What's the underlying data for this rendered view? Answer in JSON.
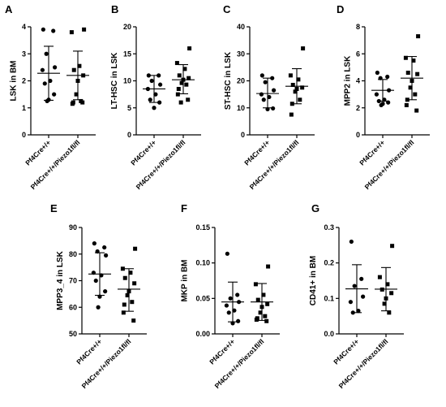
{
  "chart_data": [
    {
      "type": "scatter",
      "panel": "A",
      "ylabel": "LSK in BM",
      "ylim": [
        0,
        4
      ],
      "yticks": [
        0,
        1,
        2,
        3,
        4
      ],
      "tick_labels": [
        "0",
        "1",
        "2",
        "3",
        "4"
      ],
      "categories": [
        "Pf4Cre+/+",
        "Pf4Cre+/+/Piezo1fl/fl"
      ],
      "series": [
        {
          "name": "Pf4Cre+/+",
          "marker": "circle",
          "mean": 2.28,
          "sd_low": 1.28,
          "sd_high": 3.28,
          "values": [
            3.9,
            3.85,
            3.0,
            2.5,
            2.4,
            2.0,
            1.9,
            1.5,
            1.3,
            1.25
          ]
        },
        {
          "name": "Pf4Cre+/+/Piezo1fl/fl",
          "marker": "square",
          "mean": 2.2,
          "sd_low": 1.3,
          "sd_high": 3.1,
          "values": [
            3.9,
            3.8,
            2.55,
            2.4,
            2.2,
            2.0,
            1.5,
            1.25,
            1.2,
            1.15,
            1.2
          ]
        }
      ]
    },
    {
      "type": "scatter",
      "panel": "B",
      "ylabel": "LT-HSC in LSK",
      "ylim": [
        0,
        20
      ],
      "yticks": [
        0,
        5,
        10,
        15,
        20
      ],
      "tick_labels": [
        "0",
        "5",
        "10",
        "15",
        "20"
      ],
      "categories": [
        "Pf4Cre+/+",
        "Pf4Cre+/+/Piezo1fl/fl"
      ],
      "series": [
        {
          "name": "Pf4Cre+/+",
          "marker": "circle",
          "mean": 8.5,
          "sd_low": 6.0,
          "sd_high": 11.0,
          "values": [
            11.0,
            11.0,
            10.0,
            9.3,
            8.5,
            7.5,
            6.5,
            6.0,
            5.0
          ]
        },
        {
          "name": "Pf4Cre+/+/Piezo1fl/fl",
          "marker": "square",
          "mean": 10.2,
          "sd_low": 7.6,
          "sd_high": 13.0,
          "values": [
            16.0,
            13.3,
            12.2,
            11.0,
            10.5,
            10.2,
            9.6,
            9.3,
            8.5,
            7.5,
            6.5,
            6.0
          ]
        }
      ]
    },
    {
      "type": "scatter",
      "panel": "C",
      "ylabel": "ST-HSC in LSK",
      "ylim": [
        0,
        40
      ],
      "yticks": [
        0,
        10,
        20,
        30,
        40
      ],
      "tick_labels": [
        "0",
        "10",
        "20",
        "30",
        "40"
      ],
      "categories": [
        "Pf4Cre+/+",
        "Pf4Cre+/+/Piezo1fl/fl"
      ],
      "series": [
        {
          "name": "Pf4Cre+/+",
          "marker": "circle",
          "mean": 15.3,
          "sd_low": 10.0,
          "sd_high": 21.0,
          "values": [
            22.0,
            21.0,
            19.5,
            16.5,
            15.0,
            14.0,
            13.0,
            9.8,
            9.5
          ]
        },
        {
          "name": "Pf4Cre+/+/Piezo1fl/fl",
          "marker": "square",
          "mean": 18.0,
          "sd_low": 11.5,
          "sd_high": 24.5,
          "values": [
            32.0,
            22.0,
            20.5,
            18.5,
            17.5,
            17.0,
            16.0,
            13.0,
            11.5,
            7.5
          ]
        }
      ]
    },
    {
      "type": "scatter",
      "panel": "D",
      "ylabel": "MPP2 in LSK",
      "ylim": [
        0,
        8
      ],
      "yticks": [
        0,
        2,
        4,
        6,
        8
      ],
      "tick_labels": [
        "0",
        "2",
        "4",
        "6",
        "8"
      ],
      "categories": [
        "Pf4Cre+/+",
        "Pf4Cre+/+/Piezo1fl/fl"
      ],
      "series": [
        {
          "name": "Pf4Cre+/+",
          "marker": "circle",
          "mean": 3.3,
          "sd_low": 2.5,
          "sd_high": 4.1,
          "values": [
            4.6,
            4.3,
            4.2,
            3.3,
            3.0,
            2.6,
            2.5,
            2.4,
            2.3,
            2.2
          ]
        },
        {
          "name": "Pf4Cre+/+/Piezo1fl/fl",
          "marker": "square",
          "mean": 4.2,
          "sd_low": 2.6,
          "sd_high": 5.8,
          "values": [
            7.3,
            5.7,
            5.5,
            4.6,
            4.5,
            4.0,
            3.5,
            3.0,
            2.6,
            2.2,
            1.8
          ]
        }
      ]
    },
    {
      "type": "scatter",
      "panel": "E",
      "ylabel": "MPP3_4 in LSK",
      "ylim": [
        50,
        90
      ],
      "yticks": [
        50,
        60,
        70,
        80,
        90
      ],
      "tick_labels": [
        "50",
        "60",
        "70",
        "80",
        "90"
      ],
      "categories": [
        "Pf4Cre+/+",
        "Pf4Cre+/+/Piezo1fl/fl"
      ],
      "series": [
        {
          "name": "Pf4Cre+/+",
          "marker": "circle",
          "mean": 72.5,
          "sd_low": 64.5,
          "sd_high": 80.5,
          "values": [
            84.0,
            82.5,
            81.0,
            79.5,
            73.0,
            72.0,
            70.0,
            66.0,
            64.0,
            60.0
          ]
        },
        {
          "name": "Pf4Cre+/+/Piezo1fl/fl",
          "marker": "square",
          "mean": 66.8,
          "sd_low": 58.5,
          "sd_high": 74.5,
          "values": [
            82.0,
            74.5,
            73.0,
            71.0,
            69.0,
            66.0,
            64.5,
            62.0,
            61.0,
            58.0,
            55.0
          ]
        }
      ]
    },
    {
      "type": "scatter",
      "panel": "F",
      "ylabel": "MKP in BM",
      "ylim": [
        0,
        0.15
      ],
      "yticks": [
        0,
        0.05,
        0.1,
        0.15
      ],
      "tick_labels": [
        "0.00",
        "0.05",
        "0.10",
        "0.15"
      ],
      "categories": [
        "Pf4Cre+/+",
        "Pf4Cre+/+/Piezo1fl/fl"
      ],
      "series": [
        {
          "name": "Pf4Cre+/+",
          "marker": "circle",
          "mean": 0.045,
          "sd_low": 0.017,
          "sd_high": 0.073,
          "values": [
            0.113,
            0.055,
            0.05,
            0.045,
            0.04,
            0.033,
            0.03,
            0.018,
            0.015
          ]
        },
        {
          "name": "Pf4Cre+/+/Piezo1fl/fl",
          "marker": "square",
          "mean": 0.045,
          "sd_low": 0.019,
          "sd_high": 0.071,
          "values": [
            0.095,
            0.07,
            0.055,
            0.048,
            0.042,
            0.038,
            0.03,
            0.025,
            0.022,
            0.02,
            0.018
          ]
        }
      ]
    },
    {
      "type": "scatter",
      "panel": "G",
      "ylabel": "CD41+ in BM",
      "ylim": [
        0,
        0.3
      ],
      "yticks": [
        0,
        0.1,
        0.2,
        0.3
      ],
      "tick_labels": [
        "0.0",
        "0.1",
        "0.2",
        "0.3"
      ],
      "categories": [
        "Pf4Cre+/+",
        "Pf4Cre+/+/Piezo1fl/fl"
      ],
      "series": [
        {
          "name": "Pf4Cre+/+",
          "marker": "circle",
          "mean": 0.127,
          "sd_low": 0.06,
          "sd_high": 0.195,
          "values": [
            0.26,
            0.155,
            0.135,
            0.105,
            0.09,
            0.065,
            0.06
          ]
        },
        {
          "name": "Pf4Cre+/+/Piezo1fl/fl",
          "marker": "square",
          "mean": 0.126,
          "sd_low": 0.065,
          "sd_high": 0.187,
          "values": [
            0.248,
            0.16,
            0.14,
            0.125,
            0.115,
            0.1,
            0.085,
            0.06
          ]
        }
      ]
    }
  ]
}
